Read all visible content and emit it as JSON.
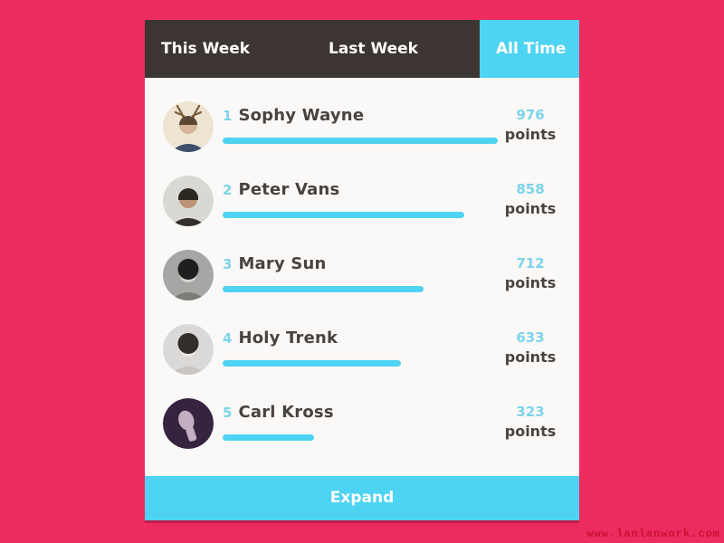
{
  "colors": {
    "background_pink": "#ee2b5f",
    "tab_bar_dark": "#3c3531",
    "accent_cyan": "#4ed3f2",
    "rank_points_cyan": "#7cd4ea",
    "text_dark": "#4a423d",
    "card_background": "#fbf9f8",
    "watermark_red": "#c41230"
  },
  "tabs": [
    {
      "label": "This Week",
      "active": false
    },
    {
      "label": "Last Week",
      "active": false
    },
    {
      "label": "All Time",
      "active": true
    }
  ],
  "leaderboard": {
    "unit_label": "points",
    "max_points": 976,
    "players": [
      {
        "rank": "1",
        "name": "Sophy Wayne",
        "points": 976,
        "avatar": {
          "variant": "antlers",
          "bg": "#ede4d1",
          "skin": "#d8b49c",
          "hair": "#5a4632",
          "clothes": "#3d4f6b",
          "accent": "#7a5c38"
        }
      },
      {
        "rank": "2",
        "name": "Peter Vans",
        "points": 858,
        "avatar": {
          "variant": "beanie",
          "bg": "#d9d8d3",
          "skin": "#bb9478",
          "hair": "#2b2822",
          "clothes": "#33302b",
          "accent": "#2b2822"
        }
      },
      {
        "rank": "3",
        "name": "Mary Sun",
        "points": 712,
        "avatar": {
          "variant": "bob",
          "bg": "#a6a6a4",
          "skin": "#d8d6d2",
          "hair": "#211f1e",
          "clothes": "#7d7b78",
          "accent": "#211f1e"
        }
      },
      {
        "rank": "4",
        "name": "Holy Trenk",
        "points": 633,
        "avatar": {
          "variant": "bob",
          "bg": "#dbd9d7",
          "skin": "#ece7e2",
          "hair": "#332e2c",
          "clothes": "#c9c5c1",
          "accent": "#332e2c"
        }
      },
      {
        "rank": "5",
        "name": "Carl Kross",
        "points": 323,
        "avatar": {
          "variant": "profile",
          "bg": "#352340",
          "skin": "#c3aec2",
          "hair": "#352340",
          "clothes": "#2a1c33",
          "accent": "#352340"
        }
      }
    ]
  },
  "footer": {
    "expand_label": "Expand"
  },
  "page": {
    "watermark": "www.lanlanwork.com"
  }
}
